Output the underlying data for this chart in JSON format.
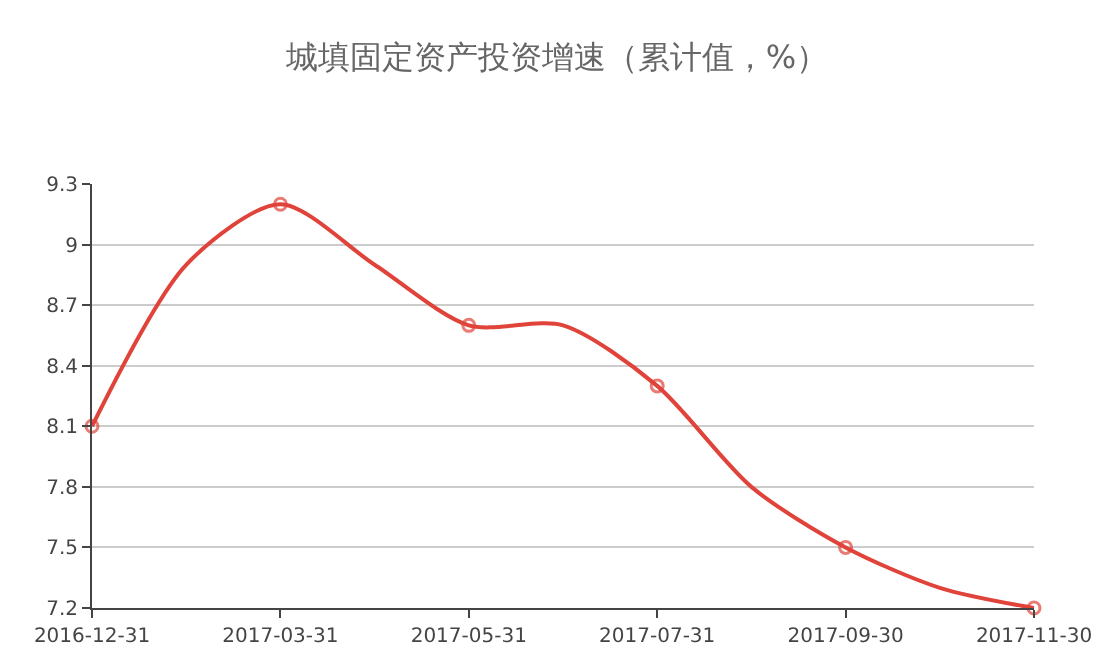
{
  "chart_data": {
    "type": "line",
    "title": "城填固定资产投资增速（累计值，%）",
    "categories": [
      "2016-12-31",
      null,
      "2017-03-31",
      null,
      "2017-05-31",
      null,
      "2017-07-31",
      null,
      "2017-09-30",
      null,
      "2017-11-30"
    ],
    "series": [
      {
        "color": "#e0433a",
        "values": [
          8.1,
          8.9,
          9.2,
          8.9,
          8.6,
          8.6,
          8.3,
          7.8,
          7.5,
          7.3,
          7.2
        ]
      }
    ],
    "ylim": [
      7.2,
      9.3
    ],
    "yticks": [
      7.2,
      7.5,
      7.8,
      8.1,
      8.4,
      8.7,
      9,
      9.3
    ],
    "grid": "y",
    "marker": "circle",
    "line_style": "solid"
  }
}
